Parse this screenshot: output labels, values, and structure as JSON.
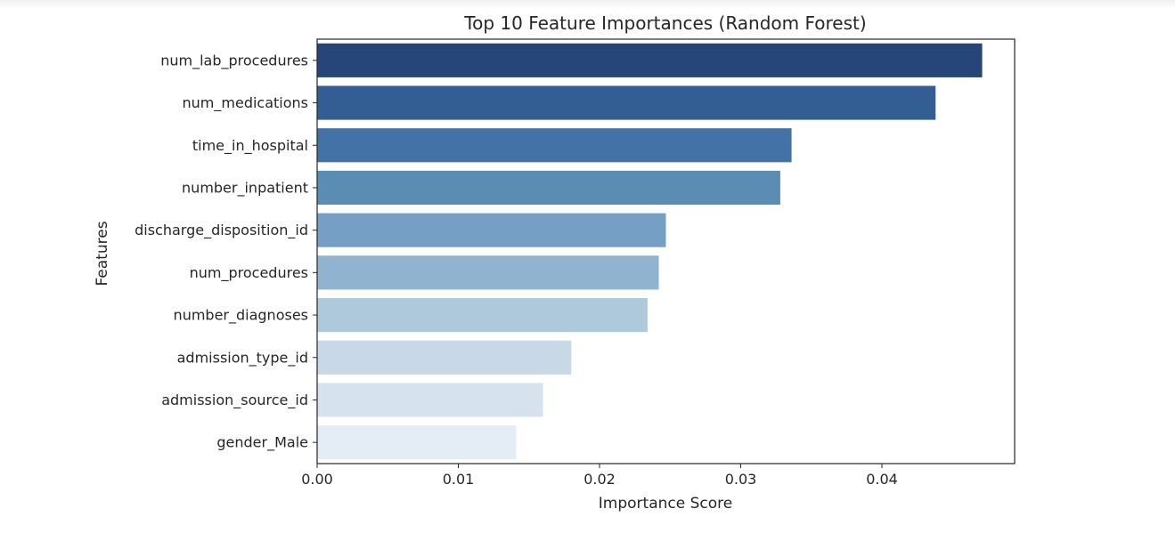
{
  "chart_data": {
    "type": "bar",
    "orientation": "horizontal",
    "title": "Top 10 Feature Importances (Random Forest)",
    "xlabel": "Importance Score",
    "ylabel": "Features",
    "categories": [
      "num_lab_procedures",
      "num_medications",
      "time_in_hospital",
      "number_inpatient",
      "discharge_disposition_id",
      "num_procedures",
      "number_diagnoses",
      "admission_type_id",
      "admission_source_id",
      "gender_Male"
    ],
    "values": [
      0.0471,
      0.0438,
      0.0336,
      0.0328,
      0.0247,
      0.0242,
      0.0234,
      0.018,
      0.016,
      0.0141
    ],
    "colors": [
      "#26467a",
      "#335e94",
      "#4272a6",
      "#5a8cb4",
      "#769fc5",
      "#90b4cf",
      "#aec8dc",
      "#c9d8e7",
      "#d7e2ef",
      "#e4ecf6"
    ],
    "xlim": [
      0,
      0.0494
    ],
    "xticks": [
      "0.00",
      "0.01",
      "0.02",
      "0.03",
      "0.04"
    ],
    "xtick_values": [
      0,
      0.01,
      0.02,
      0.03,
      0.04
    ],
    "grid": false,
    "legend": "none"
  }
}
